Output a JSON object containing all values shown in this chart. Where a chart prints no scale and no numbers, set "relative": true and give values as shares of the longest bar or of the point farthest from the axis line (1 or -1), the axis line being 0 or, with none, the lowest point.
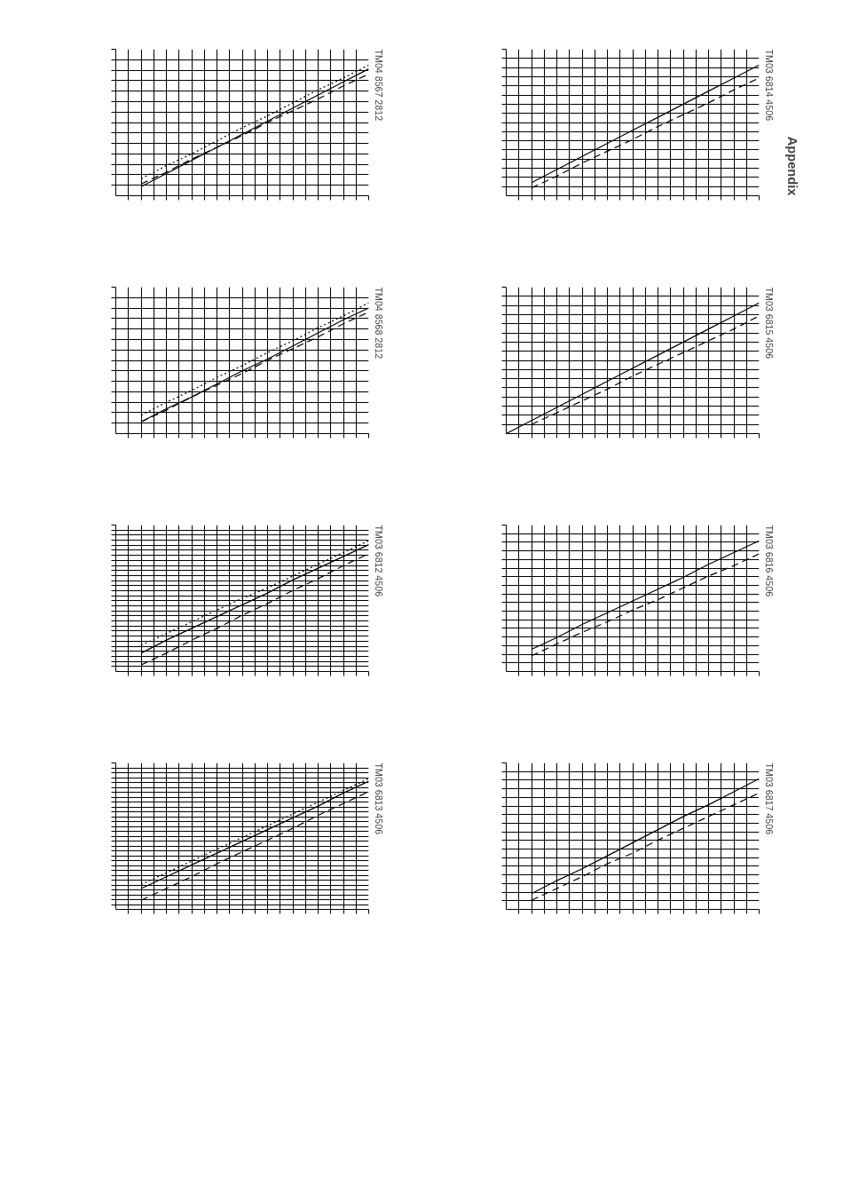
{
  "chart_data": [
    {
      "type": "line",
      "relative": true,
      "grid": true,
      "tick_labels": false,
      "annotations": [
        "TM04 8567 2812"
      ],
      "categories": [
        null,
        null,
        null,
        null,
        null,
        null,
        null,
        null,
        null,
        null,
        null
      ],
      "series": [
        {
          "color": "#000000",
          "line_style": "solid",
          "values": [
            null,
            0.07,
            0.17,
            0.27,
            0.37,
            0.47,
            0.57,
            0.67,
            0.77,
            0.87,
            0.97
          ]
        },
        {
          "color": "#000000",
          "line_style": "dashed",
          "values": [
            null,
            0.09,
            0.18,
            0.28,
            0.37,
            0.46,
            0.56,
            0.65,
            0.74,
            0.84,
            0.93
          ]
        },
        {
          "color": "#000000",
          "line_style": "dotted",
          "values": [
            null,
            0.13,
            0.23,
            0.32,
            0.42,
            0.52,
            0.61,
            0.71,
            0.81,
            0.9,
            1.0
          ]
        }
      ]
    },
    {
      "type": "line",
      "relative": true,
      "grid": true,
      "tick_labels": false,
      "annotations": [
        "TM03 6814 4506",
        "Appendix"
      ],
      "categories": [
        null,
        null,
        null,
        null,
        null,
        null,
        null,
        null,
        null,
        null,
        null
      ],
      "series": [
        {
          "color": "#000000",
          "line_style": "solid",
          "values": [
            null,
            0.1,
            0.2,
            0.3,
            0.4,
            0.5,
            0.6,
            0.7,
            0.8,
            0.9,
            1.0
          ]
        },
        {
          "color": "#000000",
          "line_style": "dashed",
          "values": [
            null,
            0.06,
            0.15,
            0.25,
            0.34,
            0.43,
            0.53,
            0.62,
            0.71,
            0.81,
            0.9
          ]
        }
      ]
    },
    {
      "type": "line",
      "relative": true,
      "grid": true,
      "tick_labels": false,
      "annotations": [
        "TM04 8568 2812"
      ],
      "categories": [
        null,
        null,
        null,
        null,
        null,
        null,
        null,
        null,
        null,
        null,
        null
      ],
      "series": [
        {
          "color": "#000000",
          "line_style": "solid",
          "values": [
            null,
            0.09,
            0.19,
            0.28,
            0.38,
            0.48,
            0.57,
            0.67,
            0.77,
            0.87,
            0.96
          ]
        },
        {
          "color": "#000000",
          "line_style": "dashed",
          "values": [
            null,
            0.09,
            0.18,
            0.28,
            0.37,
            0.46,
            0.56,
            0.65,
            0.74,
            0.84,
            0.93
          ]
        },
        {
          "color": "#000000",
          "line_style": "dotted",
          "values": [
            null,
            0.14,
            0.24,
            0.33,
            0.43,
            0.52,
            0.62,
            0.71,
            0.81,
            0.9,
            1.0
          ]
        }
      ]
    },
    {
      "type": "line",
      "relative": true,
      "grid": true,
      "tick_labels": false,
      "annotations": [
        "TM03 6815 4506"
      ],
      "categories": [
        null,
        null,
        null,
        null,
        null,
        null,
        null,
        null,
        null,
        null,
        null
      ],
      "series": [
        {
          "color": "#000000",
          "line_style": "solid",
          "values": [
            0,
            0.1,
            0.2,
            0.3,
            0.4,
            0.5,
            0.6,
            0.7,
            0.8,
            0.9,
            1.0
          ]
        },
        {
          "color": "#000000",
          "line_style": "dashed",
          "values": [
            null,
            0.07,
            0.16,
            0.25,
            0.34,
            0.44,
            0.53,
            0.62,
            0.71,
            0.8,
            0.9
          ]
        }
      ]
    },
    {
      "type": "line",
      "relative": true,
      "grid": true,
      "tick_labels": false,
      "annotations": [
        "TM03 6812 4506"
      ],
      "categories": [
        null,
        null,
        null,
        null,
        null,
        null,
        null,
        null,
        null,
        null,
        null
      ],
      "series": [
        {
          "color": "#000000",
          "line_style": "solid",
          "values": [
            null,
            0.14,
            0.24,
            0.33,
            0.42,
            0.51,
            0.6,
            0.7,
            0.79,
            0.88,
            0.97
          ]
        },
        {
          "color": "#000000",
          "line_style": "dashed",
          "values": [
            null,
            0.05,
            0.14,
            0.24,
            0.33,
            0.43,
            0.52,
            0.62,
            0.71,
            0.81,
            0.9
          ]
        },
        {
          "color": "#000000",
          "line_style": "dotted",
          "values": [
            null,
            0.2,
            0.29,
            0.38,
            0.47,
            0.56,
            0.64,
            0.73,
            0.82,
            0.91,
            1.0
          ]
        }
      ]
    },
    {
      "type": "line",
      "relative": true,
      "grid": true,
      "tick_labels": false,
      "annotations": [
        "TM03 6816 4506"
      ],
      "categories": [
        null,
        null,
        null,
        null,
        null,
        null,
        null,
        null,
        null,
        null,
        null
      ],
      "series": [
        {
          "color": "#000000",
          "line_style": "solid",
          "values": [
            null,
            0.17,
            0.26,
            0.36,
            0.45,
            0.54,
            0.63,
            0.72,
            0.82,
            0.91,
            1.0
          ]
        },
        {
          "color": "#000000",
          "line_style": "dashed",
          "values": [
            null,
            0.12,
            0.21,
            0.3,
            0.38,
            0.47,
            0.55,
            0.64,
            0.73,
            0.81,
            0.9
          ]
        }
      ]
    },
    {
      "type": "line",
      "relative": true,
      "grid": true,
      "tick_labels": false,
      "annotations": [
        "TM03 6813 4506"
      ],
      "categories": [
        null,
        null,
        null,
        null,
        null,
        null,
        null,
        null,
        null,
        null,
        null
      ],
      "series": [
        {
          "color": "#000000",
          "line_style": "solid",
          "values": [
            null,
            0.16,
            0.25,
            0.34,
            0.43,
            0.52,
            0.61,
            0.7,
            0.79,
            0.89,
            0.98
          ]
        },
        {
          "color": "#000000",
          "line_style": "dashed",
          "values": [
            null,
            0.07,
            0.16,
            0.25,
            0.35,
            0.44,
            0.53,
            0.62,
            0.72,
            0.81,
            0.9
          ]
        },
        {
          "color": "#000000",
          "line_style": "dotted",
          "values": [
            null,
            0.19,
            0.28,
            0.37,
            0.46,
            0.55,
            0.64,
            0.73,
            0.82,
            0.91,
            1.0
          ]
        }
      ]
    },
    {
      "type": "line",
      "relative": true,
      "grid": true,
      "tick_labels": false,
      "annotations": [
        "TM03 6817 4506"
      ],
      "categories": [
        null,
        null,
        null,
        null,
        null,
        null,
        null,
        null,
        null,
        null,
        null
      ],
      "series": [
        {
          "color": "#000000",
          "line_style": "solid",
          "values": [
            null,
            0.12,
            0.22,
            0.31,
            0.41,
            0.51,
            0.61,
            0.71,
            0.8,
            0.9,
            1.0
          ]
        },
        {
          "color": "#000000",
          "line_style": "dashed",
          "values": [
            null,
            0.07,
            0.16,
            0.25,
            0.35,
            0.43,
            0.53,
            0.62,
            0.71,
            0.8,
            0.89
          ]
        }
      ]
    }
  ]
}
